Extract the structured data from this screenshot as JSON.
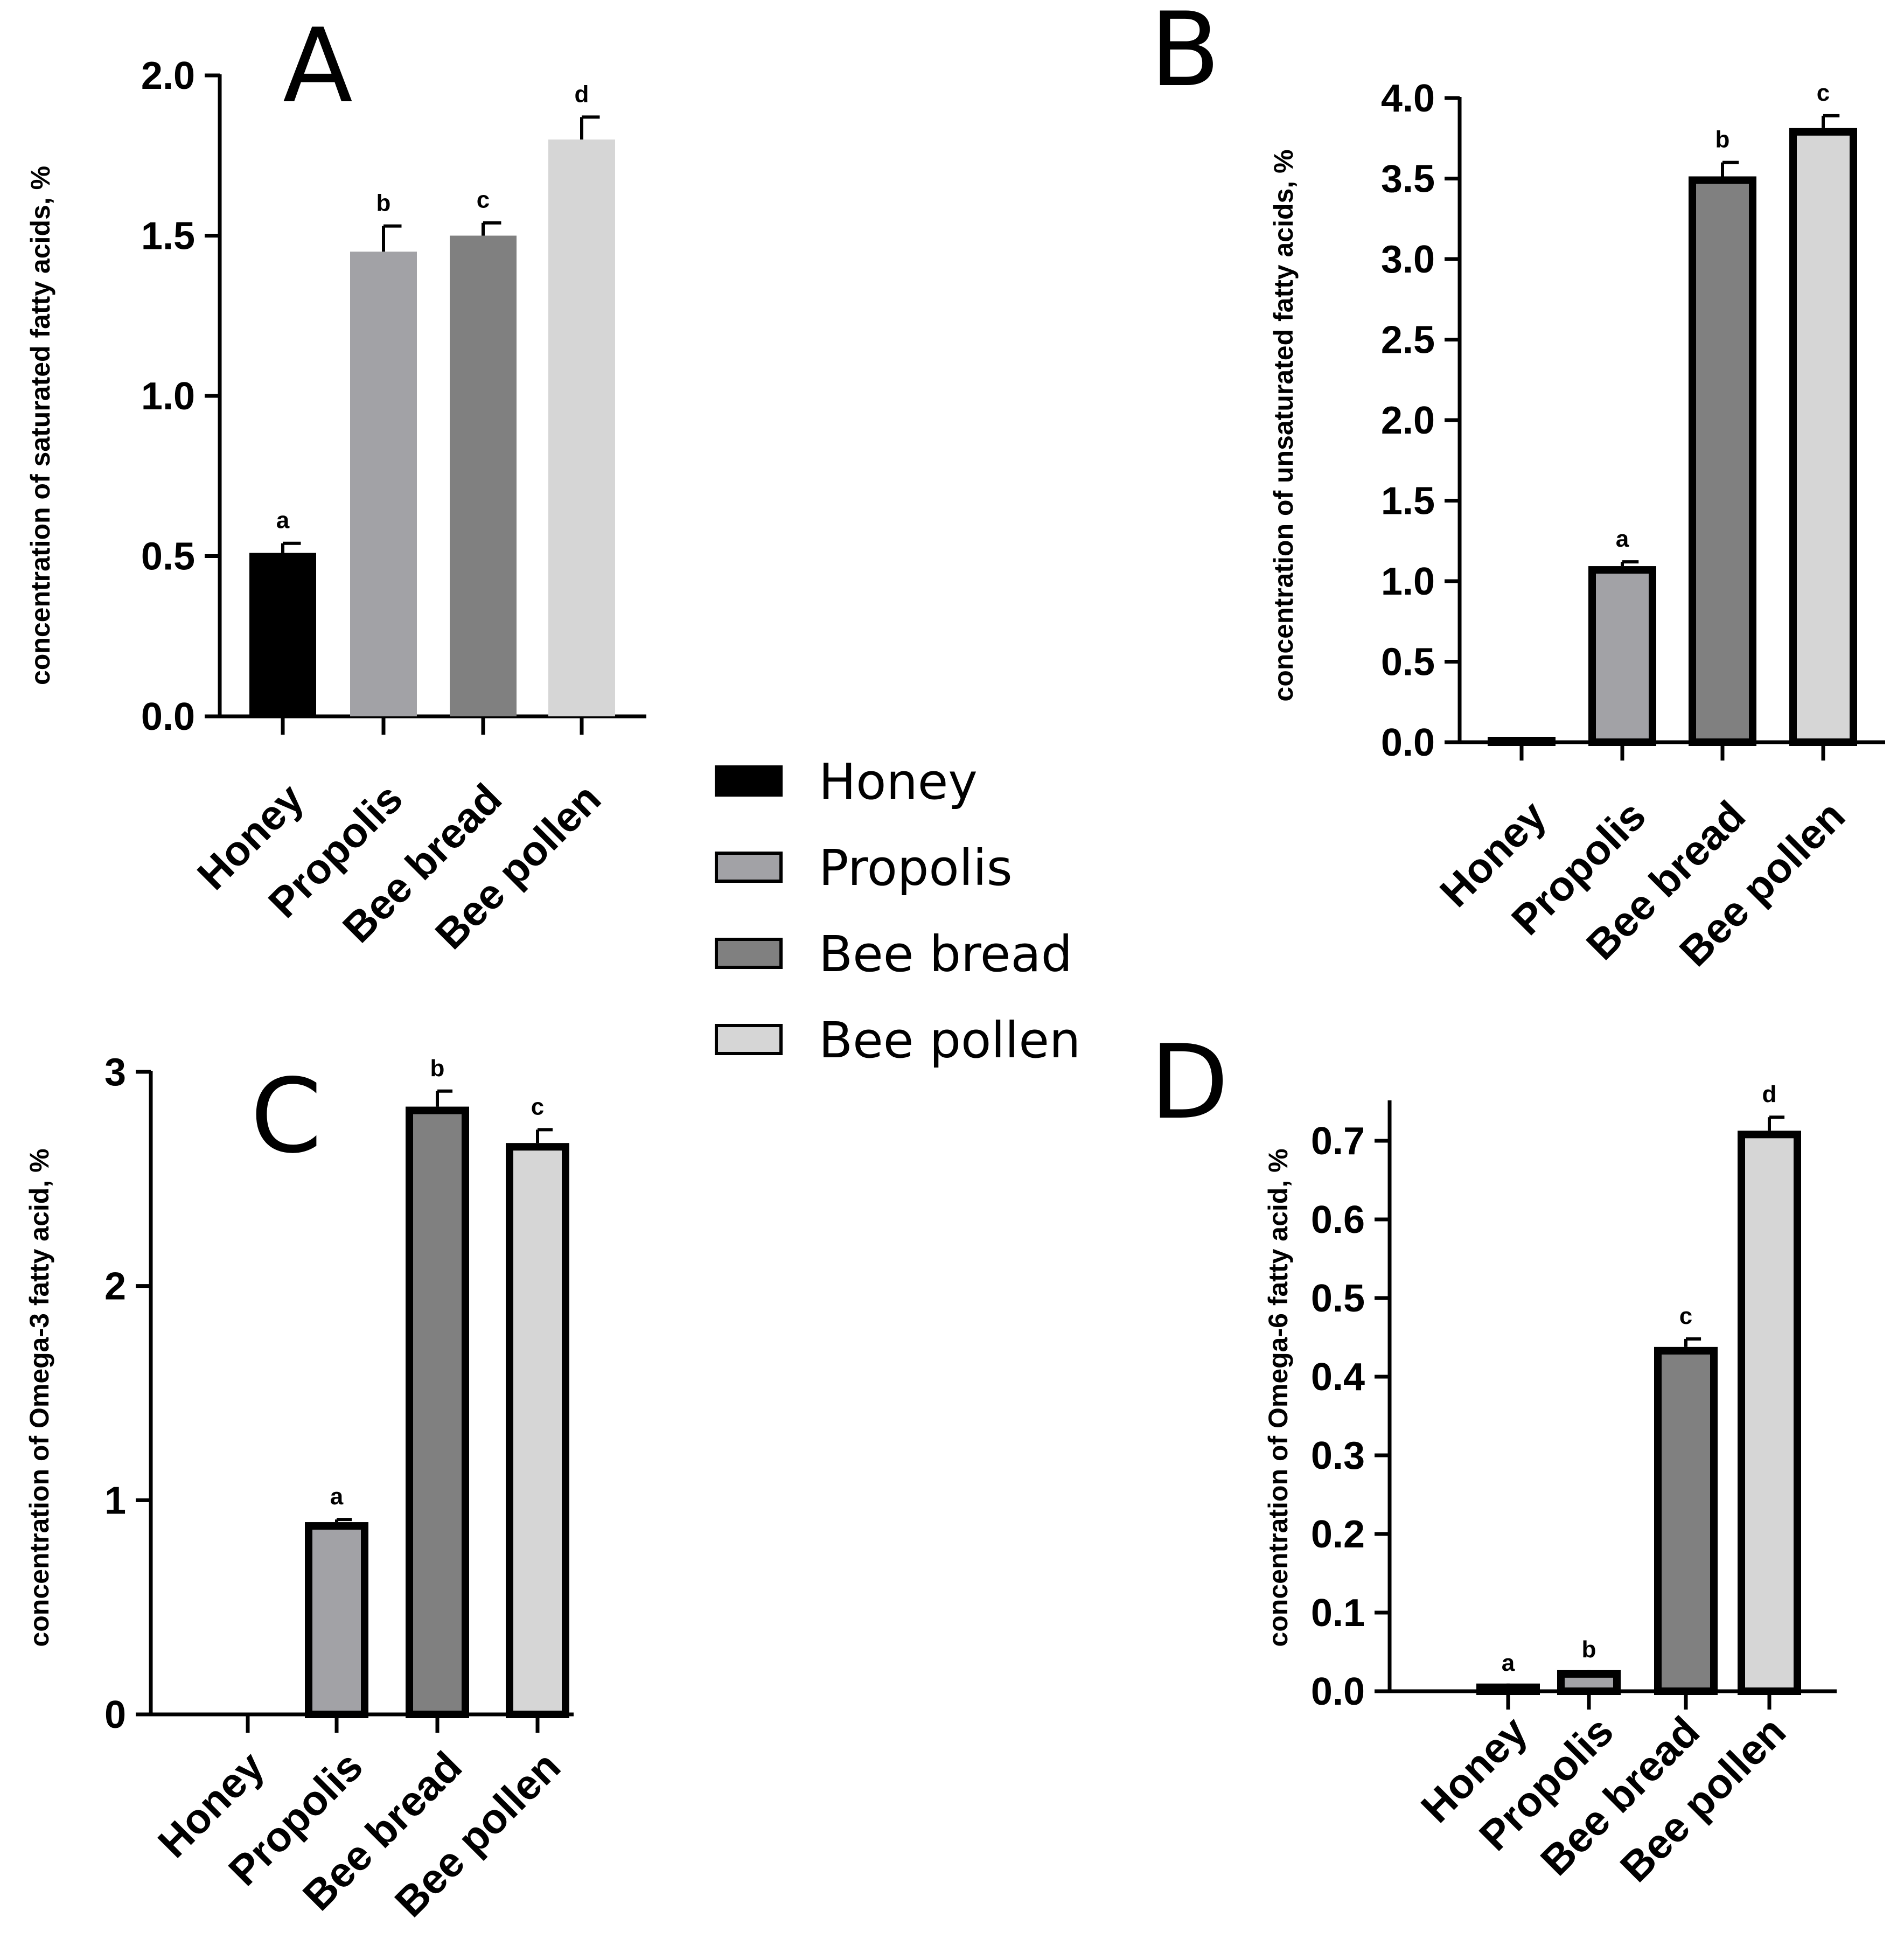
{
  "categories": [
    "Honey",
    "Propolis",
    "Bee bread",
    "Bee pollen"
  ],
  "colors": {
    "Honey": "#000000",
    "Propolis": "#a2a2a6",
    "Bee bread": "#808080",
    "Bee pollen": "#d6d6d6",
    "outline": "#000000"
  },
  "legend": {
    "items": [
      {
        "label": "Honey",
        "color": "#000000"
      },
      {
        "label": "Propolis",
        "color": "#a2a2a6"
      },
      {
        "label": "Bee bread",
        "color": "#808080"
      },
      {
        "label": "Bee pollen",
        "color": "#d6d6d6"
      }
    ]
  },
  "chart_data": [
    {
      "panel": "A",
      "type": "bar",
      "ylabel": "concentration of saturated fatty acids, %",
      "categories": [
        "Honey",
        "Propolis",
        "Bee bread",
        "Bee pollen"
      ],
      "values": [
        0.51,
        1.45,
        1.5,
        1.8
      ],
      "errors": [
        0.03,
        0.08,
        0.04,
        0.07
      ],
      "significance": [
        "a",
        "b",
        "c",
        "d"
      ],
      "ylim": [
        0,
        2.0
      ],
      "yticks": [
        0.0,
        0.5,
        1.0,
        1.5,
        2.0
      ],
      "ytick_labels": [
        "0.0",
        "0.5",
        "1.0",
        "1.5",
        "2.0"
      ],
      "outlined": false
    },
    {
      "panel": "B",
      "type": "bar",
      "ylabel": "concentration of unsaturated fatty acids, %",
      "categories": [
        "Honey",
        "Propolis",
        "Bee bread",
        "Bee pollen"
      ],
      "values": [
        0.01,
        1.07,
        3.49,
        3.79
      ],
      "errors": [
        0.0,
        0.05,
        0.11,
        0.1
      ],
      "significance": [
        "",
        "a",
        "b",
        "c"
      ],
      "ylim": [
        0,
        4.0
      ],
      "yticks": [
        0.0,
        0.5,
        1.0,
        1.5,
        2.0,
        2.5,
        3.0,
        3.5,
        4.0
      ],
      "ytick_labels": [
        "0.0",
        "0.5",
        "1.0",
        "1.5",
        "2.0",
        "2.5",
        "3.0",
        "3.5",
        "4.0"
      ],
      "outlined": true
    },
    {
      "panel": "C",
      "type": "bar",
      "ylabel": "concentration of Omega-3 fatty acid, %",
      "categories": [
        "Honey",
        "Propolis",
        "Bee bread",
        "Bee pollen"
      ],
      "values": [
        0.0,
        0.88,
        2.82,
        2.65
      ],
      "errors": [
        0.0,
        0.03,
        0.09,
        0.08
      ],
      "significance": [
        "",
        "a",
        "b",
        "c"
      ],
      "ylim": [
        0,
        3
      ],
      "yticks": [
        0,
        1,
        2,
        3
      ],
      "ytick_labels": [
        "0",
        "1",
        "2",
        "3"
      ],
      "outlined": true
    },
    {
      "panel": "D",
      "type": "bar",
      "ylabel": "concentration of Omega-6 fatty acid, %",
      "categories": [
        "Honey",
        "Propolis",
        "Bee bread",
        "Bee pollen"
      ],
      "values": [
        0.005,
        0.022,
        0.433,
        0.708
      ],
      "errors": [
        0.002,
        0.002,
        0.015,
        0.022
      ],
      "significance": [
        "a",
        "b",
        "c",
        "d"
      ],
      "ylim": [
        0,
        0.75
      ],
      "yticks": [
        0.0,
        0.1,
        0.2,
        0.3,
        0.4,
        0.5,
        0.6,
        0.7
      ],
      "ytick_labels": [
        "0.0",
        "0.1",
        "0.2",
        "0.3",
        "0.4",
        "0.5",
        "0.6",
        "0.7"
      ],
      "outlined": true
    }
  ]
}
